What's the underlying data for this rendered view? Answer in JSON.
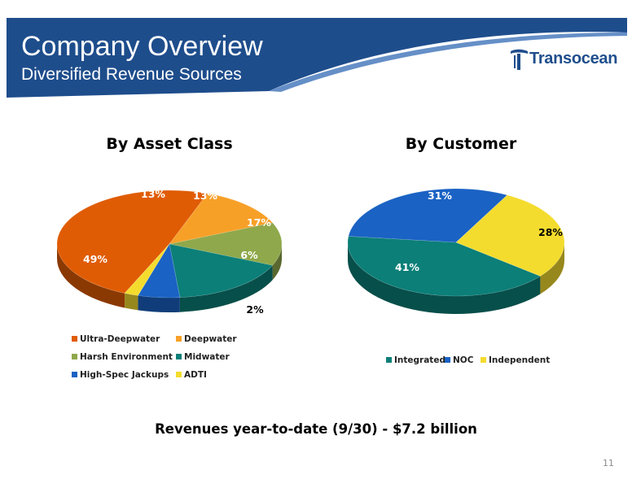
{
  "slide": {
    "title": "Company Overview",
    "subtitle": "Diversified Revenue Sources",
    "logo_text": "Transocean",
    "footer_note": "Revenues year-to-date (9/30) - $7.2 billion",
    "page_number": "11"
  },
  "colors": {
    "header_blue": "#1e4d8c",
    "header_light": "#4a7bbd",
    "logo_blue": "#1f4e8c"
  },
  "chart_data": [
    {
      "type": "pie",
      "title": "By Asset Class",
      "categories": [
        "Ultra-Deepwater",
        "Deepwater",
        "Harsh Environment",
        "Midwater",
        "High-Spec Jackups",
        "ADTI"
      ],
      "values": [
        49,
        13,
        13,
        17,
        6,
        2
      ],
      "labels": [
        "49%",
        "13%",
        "13%",
        "17%",
        "6%",
        "2%"
      ],
      "colors": [
        "#e05c04",
        "#f7a028",
        "#8fa84b",
        "#0b7f78",
        "#1a62c4",
        "#f4dc2e"
      ],
      "legend": "bottom"
    },
    {
      "type": "pie",
      "title": "By Customer",
      "categories": [
        "Integrated",
        "NOC",
        "Independent"
      ],
      "values": [
        41,
        31,
        28
      ],
      "labels": [
        "41%",
        "31%",
        "28%"
      ],
      "colors": [
        "#0b7f78",
        "#1a62c4",
        "#f4dc2e"
      ],
      "legend": "bottom"
    }
  ]
}
